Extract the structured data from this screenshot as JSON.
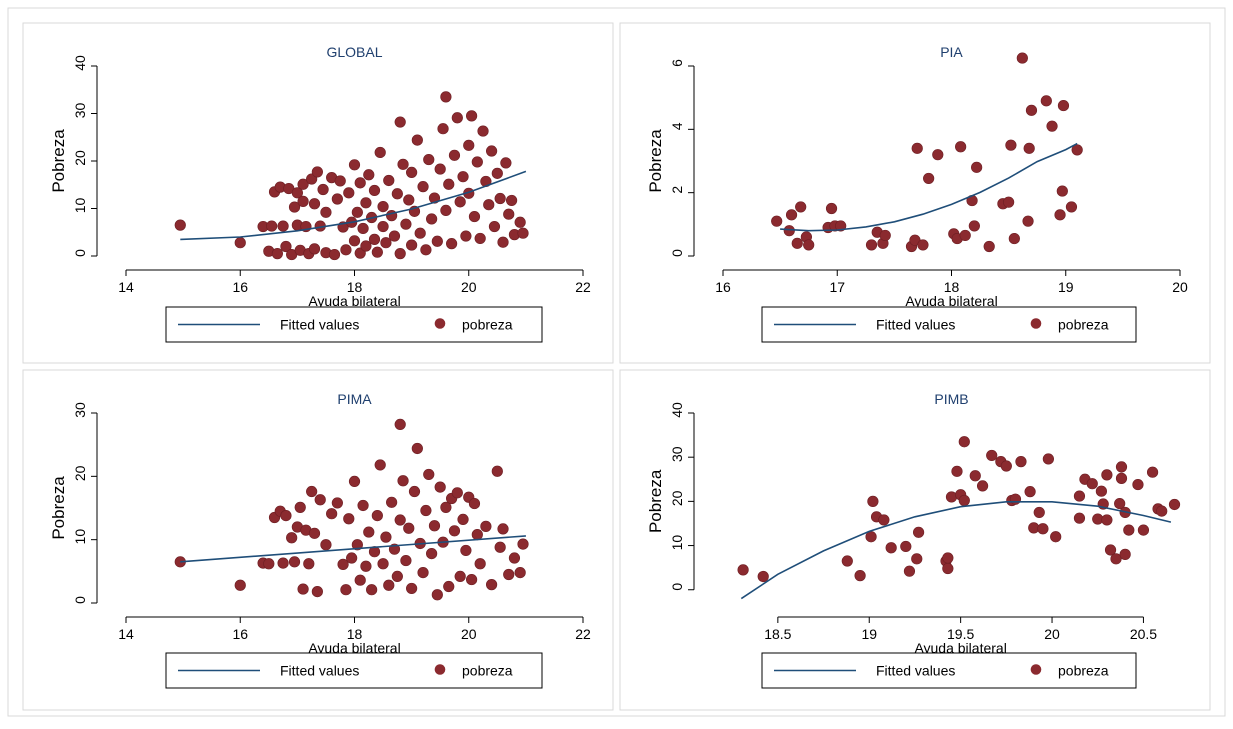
{
  "colors": {
    "fit_line": "#1f4e79",
    "points": "#8b2a2f",
    "axis": "#000000",
    "title": "#1f3f6e",
    "border": "#d9d9d9"
  },
  "chart_data": [
    {
      "type": "scatter",
      "title": "GLOBAL",
      "xlabel": "Ayuda bilateral",
      "ylabel": "Pobreza",
      "xlim": [
        14,
        22
      ],
      "ylim": [
        0,
        40
      ],
      "xticks": [
        14,
        16,
        18,
        20,
        22
      ],
      "yticks": [
        0,
        10,
        20,
        30,
        40
      ],
      "legend": {
        "position": "bottom",
        "items": [
          "Fitted values",
          "pobreza"
        ]
      },
      "fit_line": {
        "x": [
          14.95,
          16,
          17,
          18,
          19,
          20,
          21
        ],
        "y": [
          3.5,
          4,
          5.3,
          7.2,
          9.9,
          13.4,
          17.8
        ]
      },
      "points": [
        [
          14.95,
          6.5
        ],
        [
          16,
          2.8
        ],
        [
          16.4,
          6.2
        ],
        [
          16.5,
          1
        ],
        [
          16.55,
          6.3
        ],
        [
          16.6,
          13.5
        ],
        [
          16.65,
          0.5
        ],
        [
          16.7,
          14.5
        ],
        [
          16.75,
          6.3
        ],
        [
          16.8,
          2
        ],
        [
          16.85,
          14.2
        ],
        [
          16.9,
          0.3
        ],
        [
          16.95,
          10.3
        ],
        [
          17.0,
          6.5
        ],
        [
          17.0,
          13.3
        ],
        [
          17.05,
          1.2
        ],
        [
          17.1,
          11.5
        ],
        [
          17.1,
          15.1
        ],
        [
          17.15,
          6.2
        ],
        [
          17.2,
          0.5
        ],
        [
          17.25,
          16.2
        ],
        [
          17.3,
          11
        ],
        [
          17.3,
          1.5
        ],
        [
          17.35,
          17.7
        ],
        [
          17.4,
          6.3
        ],
        [
          17.45,
          14
        ],
        [
          17.5,
          0.7
        ],
        [
          17.5,
          9.2
        ],
        [
          17.6,
          16.5
        ],
        [
          17.65,
          0.3
        ],
        [
          17.7,
          12
        ],
        [
          17.75,
          15.8
        ],
        [
          17.8,
          6.1
        ],
        [
          17.85,
          1.3
        ],
        [
          17.9,
          13.3
        ],
        [
          17.95,
          7.1
        ],
        [
          18.0,
          3.2
        ],
        [
          18.0,
          19.2
        ],
        [
          18.05,
          9.2
        ],
        [
          18.1,
          0.6
        ],
        [
          18.1,
          15.4
        ],
        [
          18.15,
          5.8
        ],
        [
          18.2,
          11.2
        ],
        [
          18.2,
          2.1
        ],
        [
          18.25,
          17.1
        ],
        [
          18.3,
          8.1
        ],
        [
          18.35,
          3.5
        ],
        [
          18.35,
          13.8
        ],
        [
          18.4,
          0.8
        ],
        [
          18.45,
          21.8
        ],
        [
          18.5,
          6.2
        ],
        [
          18.5,
          10.4
        ],
        [
          18.55,
          2.8
        ],
        [
          18.6,
          15.9
        ],
        [
          18.65,
          8.5
        ],
        [
          18.7,
          4.2
        ],
        [
          18.75,
          13.1
        ],
        [
          18.8,
          0.5
        ],
        [
          18.8,
          28.2
        ],
        [
          18.85,
          19.3
        ],
        [
          18.9,
          6.7
        ],
        [
          18.95,
          11.8
        ],
        [
          19.0,
          2.3
        ],
        [
          19.0,
          17.6
        ],
        [
          19.05,
          9.4
        ],
        [
          19.1,
          24.4
        ],
        [
          19.15,
          4.8
        ],
        [
          19.2,
          14.6
        ],
        [
          19.25,
          1.3
        ],
        [
          19.3,
          20.3
        ],
        [
          19.35,
          7.8
        ],
        [
          19.4,
          12.2
        ],
        [
          19.45,
          3.1
        ],
        [
          19.5,
          18.3
        ],
        [
          19.55,
          26.8
        ],
        [
          19.6,
          9.6
        ],
        [
          19.6,
          33.5
        ],
        [
          19.65,
          15.1
        ],
        [
          19.7,
          2.6
        ],
        [
          19.75,
          21.2
        ],
        [
          19.8,
          29.1
        ],
        [
          19.85,
          11.4
        ],
        [
          19.9,
          16.7
        ],
        [
          19.95,
          4.2
        ],
        [
          20.0,
          23.3
        ],
        [
          20.0,
          13.2
        ],
        [
          20.05,
          29.5
        ],
        [
          20.1,
          8.3
        ],
        [
          20.15,
          19.8
        ],
        [
          20.2,
          3.7
        ],
        [
          20.25,
          26.3
        ],
        [
          20.3,
          15.7
        ],
        [
          20.35,
          10.8
        ],
        [
          20.4,
          22.1
        ],
        [
          20.45,
          6.2
        ],
        [
          20.5,
          17.4
        ],
        [
          20.55,
          12.1
        ],
        [
          20.6,
          2.9
        ],
        [
          20.65,
          19.6
        ],
        [
          20.7,
          8.8
        ],
        [
          20.75,
          11.7
        ],
        [
          20.8,
          4.5
        ],
        [
          20.9,
          7.1
        ],
        [
          20.95,
          4.8
        ]
      ]
    },
    {
      "type": "scatter",
      "title": "PIA",
      "xlabel": "Ayuda bilateral",
      "ylabel": "Pobreza",
      "xlim": [
        16,
        20
      ],
      "ylim": [
        0,
        6
      ],
      "xticks": [
        16,
        17,
        18,
        19,
        20
      ],
      "yticks": [
        0,
        2,
        4,
        6
      ],
      "legend": {
        "position": "bottom",
        "items": [
          "Fitted values",
          "pobreza"
        ]
      },
      "fit_line": {
        "x": [
          16.5,
          16.75,
          17,
          17.25,
          17.5,
          17.75,
          18,
          18.25,
          18.5,
          18.75,
          19,
          19.1
        ],
        "y": [
          0.85,
          0.8,
          0.82,
          0.92,
          1.08,
          1.32,
          1.63,
          2.01,
          2.46,
          2.98,
          3.36,
          3.55
        ]
      },
      "points": [
        [
          16.47,
          1.1
        ],
        [
          16.58,
          0.8
        ],
        [
          16.6,
          1.3
        ],
        [
          16.65,
          0.4
        ],
        [
          16.68,
          1.55
        ],
        [
          16.73,
          0.6
        ],
        [
          16.75,
          0.35
        ],
        [
          16.92,
          0.9
        ],
        [
          16.95,
          1.5
        ],
        [
          16.98,
          0.95
        ],
        [
          17.03,
          0.95
        ],
        [
          17.3,
          0.35
        ],
        [
          17.35,
          0.75
        ],
        [
          17.4,
          0.4
        ],
        [
          17.42,
          0.65
        ],
        [
          17.65,
          0.3
        ],
        [
          17.68,
          0.5
        ],
        [
          17.7,
          3.4
        ],
        [
          17.75,
          0.35
        ],
        [
          17.8,
          2.45
        ],
        [
          17.88,
          3.2
        ],
        [
          18.02,
          0.7
        ],
        [
          18.05,
          0.55
        ],
        [
          18.08,
          3.45
        ],
        [
          18.12,
          0.65
        ],
        [
          18.18,
          1.75
        ],
        [
          18.2,
          0.95
        ],
        [
          18.22,
          2.8
        ],
        [
          18.33,
          0.3
        ],
        [
          18.45,
          1.65
        ],
        [
          18.5,
          1.7
        ],
        [
          18.52,
          3.5
        ],
        [
          18.55,
          0.55
        ],
        [
          18.62,
          6.25
        ],
        [
          18.67,
          1.1
        ],
        [
          18.68,
          3.4
        ],
        [
          18.7,
          4.6
        ],
        [
          18.83,
          4.9
        ],
        [
          18.88,
          4.1
        ],
        [
          18.95,
          1.3
        ],
        [
          18.97,
          2.05
        ],
        [
          18.98,
          4.75
        ],
        [
          19.05,
          1.55
        ],
        [
          19.1,
          3.35
        ]
      ]
    },
    {
      "type": "scatter",
      "title": "PIMA",
      "xlabel": "Ayuda bilateral",
      "ylabel": "Pobreza",
      "xlim": [
        14,
        22
      ],
      "ylim": [
        0,
        30
      ],
      "xticks": [
        14,
        16,
        18,
        20,
        22
      ],
      "yticks": [
        0,
        10,
        20,
        30
      ],
      "legend": {
        "position": "bottom",
        "items": [
          "Fitted values",
          "pobreza"
        ]
      },
      "fit_line": {
        "x": [
          14.95,
          21
        ],
        "y": [
          6.5,
          10.6
        ]
      },
      "points": [
        [
          14.95,
          6.5
        ],
        [
          16,
          2.8
        ],
        [
          16.4,
          6.3
        ],
        [
          16.5,
          6.2
        ],
        [
          16.6,
          13.5
        ],
        [
          16.7,
          14.5
        ],
        [
          16.75,
          6.3
        ],
        [
          16.8,
          13.8
        ],
        [
          16.9,
          10.3
        ],
        [
          16.95,
          6.5
        ],
        [
          17.0,
          12
        ],
        [
          17.05,
          15.1
        ],
        [
          17.1,
          2.2
        ],
        [
          17.15,
          11.5
        ],
        [
          17.2,
          6.2
        ],
        [
          17.25,
          17.6
        ],
        [
          17.3,
          11
        ],
        [
          17.35,
          1.8
        ],
        [
          17.4,
          16.3
        ],
        [
          17.5,
          9.2
        ],
        [
          17.6,
          14.1
        ],
        [
          17.7,
          15.8
        ],
        [
          17.8,
          6.1
        ],
        [
          17.85,
          2.1
        ],
        [
          17.9,
          13.3
        ],
        [
          17.95,
          7.1
        ],
        [
          18.0,
          19.2
        ],
        [
          18.05,
          9.2
        ],
        [
          18.1,
          3.6
        ],
        [
          18.15,
          15.4
        ],
        [
          18.2,
          5.8
        ],
        [
          18.25,
          11.2
        ],
        [
          18.3,
          2.1
        ],
        [
          18.35,
          8.1
        ],
        [
          18.4,
          13.8
        ],
        [
          18.45,
          21.8
        ],
        [
          18.5,
          6.2
        ],
        [
          18.55,
          10.4
        ],
        [
          18.6,
          2.8
        ],
        [
          18.65,
          15.9
        ],
        [
          18.7,
          8.5
        ],
        [
          18.75,
          4.2
        ],
        [
          18.8,
          28.2
        ],
        [
          18.8,
          13.1
        ],
        [
          18.85,
          19.3
        ],
        [
          18.9,
          6.7
        ],
        [
          18.95,
          11.8
        ],
        [
          19.0,
          2.3
        ],
        [
          19.05,
          17.6
        ],
        [
          19.1,
          24.4
        ],
        [
          19.15,
          9.4
        ],
        [
          19.2,
          4.8
        ],
        [
          19.25,
          14.6
        ],
        [
          19.3,
          20.3
        ],
        [
          19.35,
          7.8
        ],
        [
          19.4,
          12.2
        ],
        [
          19.45,
          1.3
        ],
        [
          19.5,
          18.3
        ],
        [
          19.55,
          9.6
        ],
        [
          19.6,
          15.1
        ],
        [
          19.65,
          2.6
        ],
        [
          19.7,
          16.5
        ],
        [
          19.75,
          11.4
        ],
        [
          19.8,
          17.4
        ],
        [
          19.85,
          4.2
        ],
        [
          19.9,
          13.2
        ],
        [
          19.95,
          8.3
        ],
        [
          20.0,
          16.7
        ],
        [
          20.05,
          3.7
        ],
        [
          20.1,
          15.7
        ],
        [
          20.15,
          10.8
        ],
        [
          20.2,
          6.2
        ],
        [
          20.3,
          12.1
        ],
        [
          20.4,
          2.9
        ],
        [
          20.5,
          20.8
        ],
        [
          20.55,
          8.8
        ],
        [
          20.6,
          11.7
        ],
        [
          20.7,
          4.5
        ],
        [
          20.8,
          7.1
        ],
        [
          20.9,
          4.8
        ],
        [
          20.95,
          9.3
        ]
      ]
    },
    {
      "type": "scatter",
      "title": "PIMB",
      "xlabel": "Ayuda bilateral",
      "ylabel": "Pobreza",
      "xlim": [
        18.2,
        20.7
      ],
      "ylim": [
        -3,
        40
      ],
      "xticks": [
        18.5,
        19,
        19.5,
        20,
        20.5
      ],
      "yticks": [
        0,
        10,
        20,
        30,
        40
      ],
      "legend": {
        "position": "bottom",
        "items": [
          "Fitted values",
          "pobreza"
        ]
      },
      "fit_line": {
        "x": [
          18.3,
          18.5,
          18.75,
          19,
          19.25,
          19.5,
          19.75,
          20,
          20.25,
          20.5,
          20.65
        ],
        "y": [
          -2,
          3.5,
          8.8,
          13.2,
          16.5,
          18.8,
          19.9,
          19.9,
          18.9,
          16.8,
          15.3
        ]
      },
      "points": [
        [
          18.31,
          4.5
        ],
        [
          18.42,
          3
        ],
        [
          18.88,
          6.5
        ],
        [
          18.95,
          3.2
        ],
        [
          19.01,
          12
        ],
        [
          19.02,
          20
        ],
        [
          19.04,
          16.5
        ],
        [
          19.08,
          15.8
        ],
        [
          19.12,
          9.5
        ],
        [
          19.2,
          9.8
        ],
        [
          19.22,
          4.2
        ],
        [
          19.26,
          7
        ],
        [
          19.27,
          13
        ],
        [
          19.42,
          6.5
        ],
        [
          19.43,
          4.8
        ],
        [
          19.43,
          7.2
        ],
        [
          19.45,
          21
        ],
        [
          19.48,
          26.8
        ],
        [
          19.5,
          21.5
        ],
        [
          19.52,
          20.2
        ],
        [
          19.52,
          33.5
        ],
        [
          19.58,
          25.8
        ],
        [
          19.62,
          23.5
        ],
        [
          19.67,
          30.4
        ],
        [
          19.72,
          29
        ],
        [
          19.75,
          28
        ],
        [
          19.78,
          20.2
        ],
        [
          19.8,
          20.5
        ],
        [
          19.83,
          29
        ],
        [
          19.88,
          22.2
        ],
        [
          19.9,
          14
        ],
        [
          19.93,
          17.5
        ],
        [
          19.95,
          13.8
        ],
        [
          19.98,
          29.6
        ],
        [
          20.02,
          12
        ],
        [
          20.15,
          21.2
        ],
        [
          20.15,
          16.2
        ],
        [
          20.18,
          25
        ],
        [
          20.22,
          24
        ],
        [
          20.25,
          16
        ],
        [
          20.27,
          22.3
        ],
        [
          20.28,
          19.4
        ],
        [
          20.3,
          15.8
        ],
        [
          20.3,
          26
        ],
        [
          20.32,
          9
        ],
        [
          20.35,
          7
        ],
        [
          20.37,
          19.5
        ],
        [
          20.38,
          27.8
        ],
        [
          20.38,
          25.2
        ],
        [
          20.4,
          17.5
        ],
        [
          20.4,
          8
        ],
        [
          20.42,
          13.5
        ],
        [
          20.47,
          23.8
        ],
        [
          20.5,
          13.5
        ],
        [
          20.55,
          26.6
        ],
        [
          20.58,
          18.3
        ],
        [
          20.6,
          17.8
        ],
        [
          20.67,
          19.3
        ]
      ]
    }
  ]
}
